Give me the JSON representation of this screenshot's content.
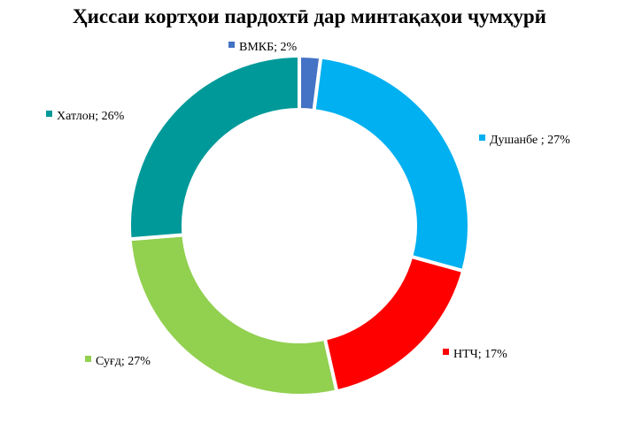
{
  "chart_data": {
    "type": "pie",
    "style": "donut",
    "title": "Ҳиссаи кортҳои пардохтӣ дар минтақаҳои ҷумҳурӣ",
    "start_angle": "top",
    "direction": "clockwise",
    "slices": [
      {
        "label": "ВМКБ; 2%",
        "name": "ВМКБ",
        "value": 2,
        "color": "#4472C4"
      },
      {
        "label": "Душанбе ; 27%",
        "name": "Душанбе",
        "value": 27,
        "color": "#00B0F0"
      },
      {
        "label": "НТЧ; 17%",
        "name": "НТЧ",
        "value": 17,
        "color": "#FF0000"
      },
      {
        "label": "Суғд; 27%",
        "name": "Суғд",
        "value": 27,
        "color": "#92D050"
      },
      {
        "label": "Хатлон; 26%",
        "name": "Хатлон",
        "value": 26,
        "color": "#009999"
      }
    ]
  }
}
